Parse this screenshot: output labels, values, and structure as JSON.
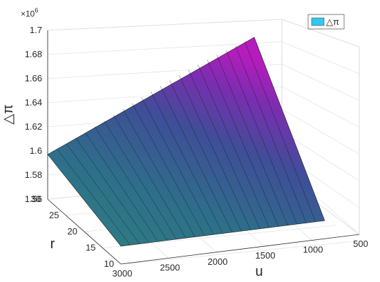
{
  "chart_data": {
    "type": "surface",
    "zlabel": "△π",
    "xlabel": "u",
    "ylabel": "r",
    "exponent": "×10",
    "exponent_power": "6",
    "legend": {
      "label": "△π",
      "placement": "top-right"
    },
    "x_ticks": [
      "3000",
      "2500",
      "2000",
      "1500",
      "1000",
      "500"
    ],
    "y_ticks": [
      "10",
      "15",
      "20",
      "25",
      "30"
    ],
    "z_ticks": [
      "1.56",
      "1.58",
      "1.6",
      "1.62",
      "1.64",
      "1.66",
      "1.68",
      "1.7"
    ],
    "xlim": [
      500,
      3000
    ],
    "ylim": [
      10,
      30
    ],
    "zlim": [
      1.56,
      1.7
    ],
    "grid": true,
    "corner_values": {
      "u3000_r10": 1.535,
      "u3000_r30": 1.595,
      "u800_r10": 1.523,
      "u800_r30": 1.692
    },
    "colors": {
      "low": "#2f7f7f",
      "mid": "#3a5b96",
      "high": "#b020b8"
    }
  }
}
